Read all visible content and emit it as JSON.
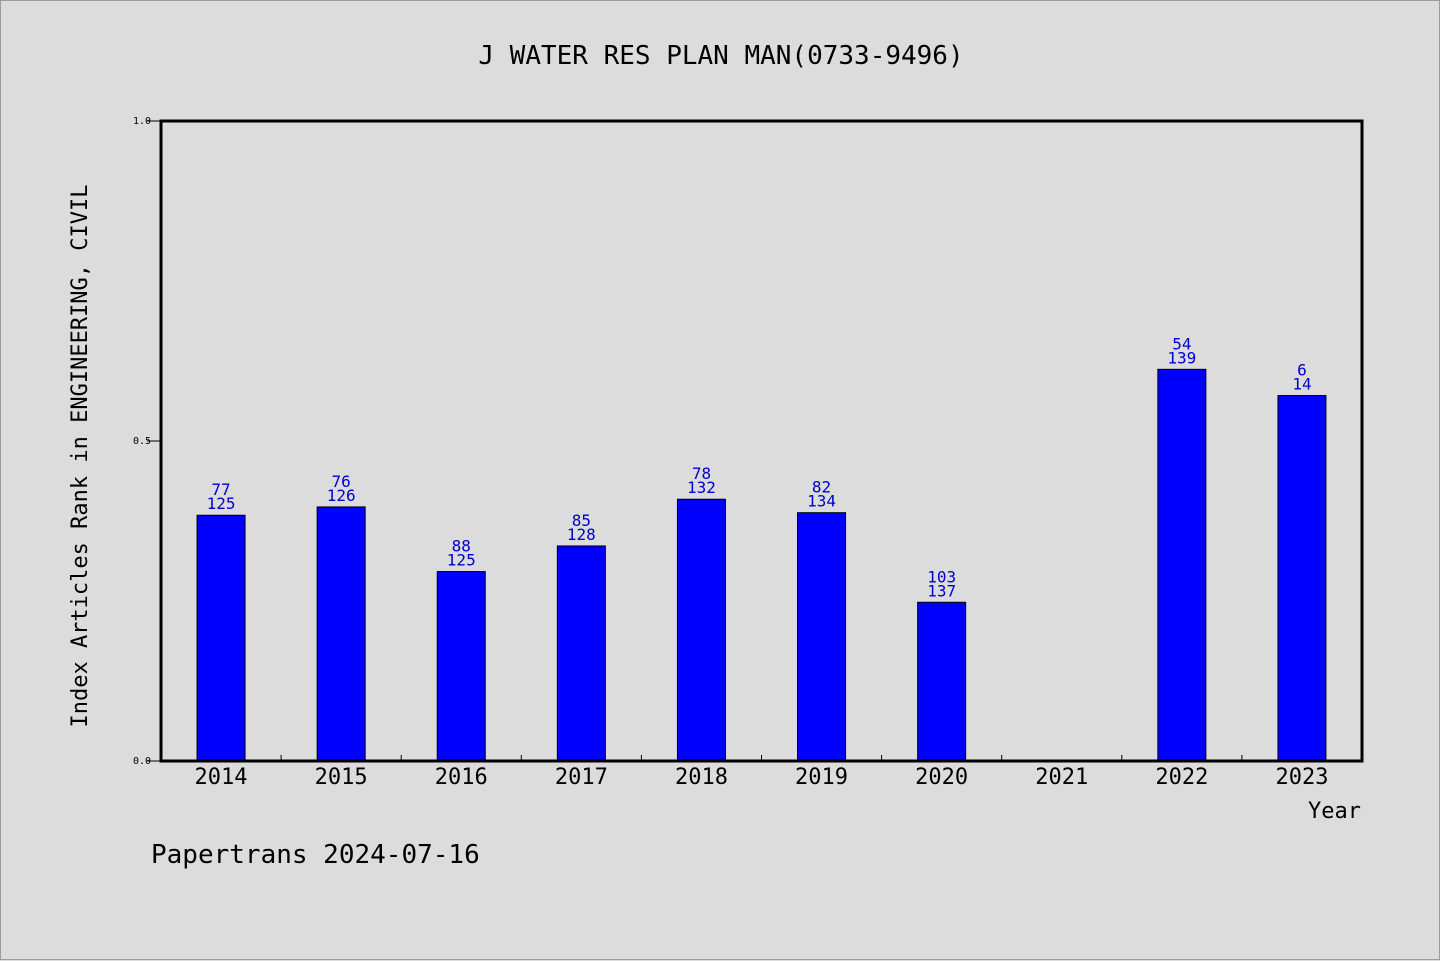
{
  "chart_data": {
    "type": "bar",
    "title": "J WATER RES PLAN MAN(0733-9496)",
    "ylabel": "Index Articles Rank in ENGINEERING, CIVIL",
    "xlabel": "Year",
    "ylim": [
      0.0,
      1.0
    ],
    "yticks": [
      {
        "value": 0.0,
        "label": "0.0"
      },
      {
        "value": 0.5,
        "label": "0.5"
      },
      {
        "value": 1.0,
        "label": "1.0"
      }
    ],
    "categories": [
      "2014",
      "2015",
      "2016",
      "2017",
      "2018",
      "2019",
      "2020",
      "2021",
      "2022",
      "2023"
    ],
    "values": [
      0.384,
      0.397,
      0.296,
      0.336,
      0.409,
      0.388,
      0.248,
      null,
      0.612,
      0.571
    ],
    "rank_labels": [
      "77",
      "76",
      "88",
      "85",
      "78",
      "82",
      "103",
      "",
      "54",
      "6"
    ],
    "total_labels": [
      "125",
      "126",
      "125",
      "128",
      "132",
      "134",
      "137",
      "",
      "139",
      "14"
    ],
    "bar_color": "#0000ff",
    "label_color": "#0000cc",
    "grid": false
  },
  "footer": "Papertrans 2024-07-16"
}
